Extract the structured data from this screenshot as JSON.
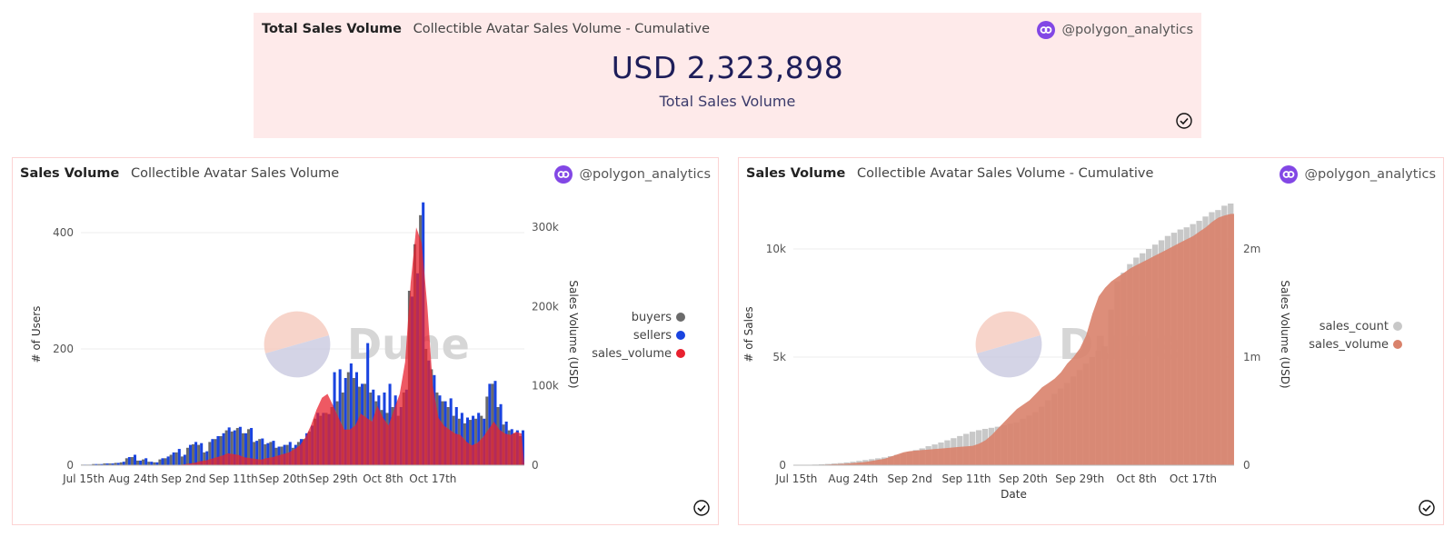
{
  "kpi": {
    "title": "Total Sales Volume",
    "subtitle": "Collectible Avatar Sales Volume - Cumulative",
    "author": "@polygon_analytics",
    "value": "USD 2,323,898",
    "label": "Total Sales Volume"
  },
  "left_panel": {
    "title": "Sales Volume",
    "subtitle": "Collectible Avatar Sales Volume",
    "author": "@polygon_analytics"
  },
  "right_panel": {
    "title": "Sales Volume",
    "subtitle": "Collectible Avatar Sales Volume - Cumulative",
    "author": "@polygon_analytics"
  },
  "watermark": "Dune",
  "colors": {
    "accent": "#8247e5",
    "buyers": "#6b6b6b",
    "sellers": "#1a44e0",
    "sales_volume": "#e8212f",
    "sales_count": "#c8c8c8",
    "cum_volume": "#d9826b"
  },
  "chart_data": [
    {
      "type": "bar",
      "title": "Collectible Avatar Sales Volume",
      "ylabel": "# of Users",
      "y2label": "Sales Volume (USD)",
      "ylim": [
        0,
        450
      ],
      "y2lim": [
        0,
        330000
      ],
      "yticks": [
        0,
        200,
        400
      ],
      "y2ticks": [
        0,
        100000,
        200000,
        300000
      ],
      "y2ticklabels": [
        "0",
        "100k",
        "200k",
        "300k"
      ],
      "xticklabels": [
        "Jul 15th",
        "Aug 24th",
        "Sep 2nd",
        "Sep 11th",
        "Sep 20th",
        "Sep 29th",
        "Oct 8th",
        "Oct 17th"
      ],
      "xtick_index": [
        0,
        9,
        18,
        27,
        36,
        45,
        54,
        63
      ],
      "legend": [
        "buyers",
        "sellers",
        "sales_volume"
      ],
      "buyers": [
        1,
        1,
        2,
        2,
        3,
        3,
        4,
        5,
        12,
        14,
        8,
        10,
        6,
        5,
        10,
        12,
        18,
        22,
        15,
        30,
        36,
        35,
        22,
        40,
        45,
        50,
        60,
        58,
        64,
        55,
        62,
        40,
        45,
        36,
        40,
        30,
        32,
        35,
        30,
        40,
        45,
        58,
        80,
        85,
        90,
        100,
        110,
        125,
        160,
        150,
        135,
        140,
        125,
        110,
        95,
        90,
        100,
        85,
        125,
        300,
        380,
        430,
        200,
        165,
        125,
        110,
        100,
        85,
        80,
        72,
        78,
        80,
        85,
        118,
        140,
        100,
        70,
        60,
        55,
        50
      ],
      "sellers": [
        1,
        1,
        2,
        2,
        3,
        3,
        4,
        6,
        14,
        18,
        8,
        12,
        6,
        5,
        12,
        15,
        22,
        28,
        18,
        35,
        40,
        38,
        24,
        45,
        50,
        55,
        65,
        60,
        66,
        55,
        64,
        42,
        46,
        38,
        42,
        32,
        35,
        40,
        35,
        45,
        55,
        68,
        90,
        90,
        88,
        160,
        165,
        150,
        175,
        160,
        140,
        210,
        130,
        120,
        125,
        140,
        120,
        100,
        130,
        290,
        330,
        452,
        180,
        155,
        120,
        110,
        115,
        100,
        90,
        82,
        85,
        90,
        80,
        140,
        145,
        105,
        75,
        62,
        60,
        60
      ],
      "sales_volume": [
        0,
        0,
        0,
        0,
        0,
        0,
        0,
        0,
        0,
        0,
        0,
        0,
        0,
        0,
        0,
        0,
        0,
        0,
        1000,
        2000,
        3000,
        5000,
        6000,
        8000,
        10000,
        12000,
        15000,
        14000,
        13000,
        10000,
        9000,
        8000,
        7000,
        9000,
        10000,
        12000,
        14000,
        16000,
        20000,
        25000,
        35000,
        50000,
        70000,
        85000,
        90000,
        75000,
        60000,
        45000,
        45000,
        50000,
        65000,
        60000,
        55000,
        75000,
        60000,
        50000,
        70000,
        90000,
        130000,
        230000,
        300000,
        280000,
        200000,
        100000,
        60000,
        50000,
        45000,
        40000,
        38000,
        30000,
        25000,
        28000,
        35000,
        45000,
        55000,
        45000,
        40000,
        38000,
        42000,
        40000
      ]
    },
    {
      "type": "area",
      "title": "Collectible Avatar Sales Volume - Cumulative",
      "xlabel": "Date",
      "ylabel": "# of Sales",
      "y2label": "Sales Volume (USD)",
      "ylim": [
        0,
        12100
      ],
      "y2lim": [
        0,
        2420000
      ],
      "yticks": [
        0,
        5000,
        10000
      ],
      "yticklabels": [
        "0",
        "5k",
        "10k"
      ],
      "y2ticks": [
        0,
        1000000,
        2000000
      ],
      "y2ticklabels": [
        "0",
        "1m",
        "2m"
      ],
      "xticklabels": [
        "Jul 15th",
        "Aug 24th",
        "Sep 2nd",
        "Sep 11th",
        "Sep 20th",
        "Sep 29th",
        "Oct 8th",
        "Oct 17th"
      ],
      "xtick_index": [
        0,
        9,
        18,
        27,
        36,
        45,
        54,
        63
      ],
      "legend": [
        "sales_count",
        "sales_volume"
      ],
      "sales_count": [
        10,
        15,
        20,
        30,
        45,
        60,
        80,
        100,
        130,
        160,
        200,
        240,
        280,
        320,
        360,
        420,
        480,
        540,
        620,
        700,
        780,
        880,
        960,
        1050,
        1150,
        1250,
        1350,
        1450,
        1550,
        1620,
        1680,
        1730,
        1780,
        1850,
        1920,
        1980,
        2150,
        2300,
        2450,
        2700,
        3000,
        3300,
        3550,
        3800,
        4100,
        4400,
        4700,
        5000,
        5300,
        5500,
        7200,
        8500,
        8900,
        9300,
        9600,
        9800,
        10000,
        10200,
        10400,
        10600,
        10750,
        10900,
        11000,
        11150,
        11300,
        11500,
        11700,
        11800,
        12000,
        12100
      ],
      "sales_volume": [
        0,
        0,
        1000,
        2000,
        4000,
        6000,
        9000,
        12000,
        15000,
        20000,
        25000,
        30000,
        40000,
        50000,
        60000,
        80000,
        100000,
        120000,
        130000,
        135000,
        140000,
        145000,
        150000,
        155000,
        160000,
        165000,
        170000,
        175000,
        180000,
        200000,
        230000,
        280000,
        340000,
        400000,
        460000,
        520000,
        560000,
        600000,
        660000,
        720000,
        760000,
        800000,
        860000,
        940000,
        1000000,
        1080000,
        1200000,
        1400000,
        1560000,
        1640000,
        1700000,
        1740000,
        1780000,
        1820000,
        1850000,
        1880000,
        1910000,
        1940000,
        1970000,
        2000000,
        2030000,
        2060000,
        2090000,
        2120000,
        2160000,
        2200000,
        2250000,
        2290000,
        2310000,
        2323898
      ]
    }
  ]
}
